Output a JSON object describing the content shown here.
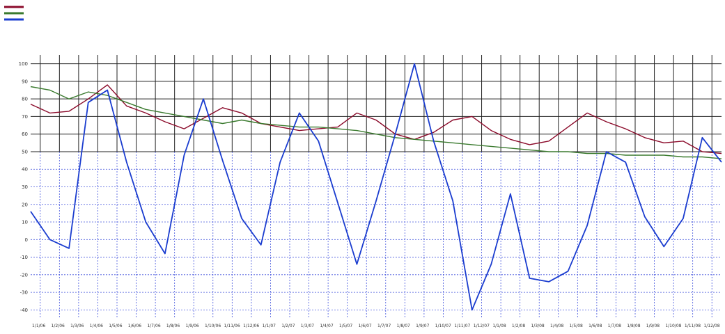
{
  "chart_data": {
    "type": "line",
    "title": "",
    "xlabel": "",
    "ylabel": "",
    "legend_position": "top-left",
    "grid": true,
    "ylim": [
      -45,
      105
    ],
    "y_ticks": [
      "100",
      "90",
      "80",
      "70",
      "60",
      "50",
      "40",
      "30",
      "20",
      "10",
      "0",
      "-10",
      "-20",
      "-30",
      "-40"
    ],
    "x_ticks": [
      "1/1/06",
      "1/2/06",
      "1/3/06",
      "1/4/06",
      "1/5/06",
      "1/6/06",
      "1/7/06",
      "1/8/06",
      "1/9/06",
      "1/10/06",
      "1/11/06",
      "1/12/06",
      "1/1/07",
      "1/2/07",
      "1/3/07",
      "1/4/07",
      "1/5/07",
      "1/6/07",
      "1/7/07",
      "1/8/07",
      "1/9/07",
      "1/10/07",
      "1/11/07",
      "1/12/07",
      "1/1/08",
      "1/2/08",
      "1/3/08",
      "1/4/08",
      "1/5/08",
      "1/6/08",
      "1/7/08",
      "1/8/08",
      "1/9/08",
      "1/10/08",
      "1/11/08",
      "1/12/08"
    ],
    "x_range": [
      0,
      36
    ],
    "series": [
      {
        "name": "",
        "color": "#8b0a2a",
        "points": [
          [
            0,
            77
          ],
          [
            1,
            72
          ],
          [
            2,
            73
          ],
          [
            3,
            80
          ],
          [
            4,
            88
          ],
          [
            5,
            76
          ],
          [
            6,
            72
          ],
          [
            7,
            67
          ],
          [
            8,
            63
          ],
          [
            9,
            69
          ],
          [
            10,
            75
          ],
          [
            11,
            72
          ],
          [
            12,
            66
          ],
          [
            13,
            64
          ],
          [
            14,
            62
          ],
          [
            15,
            63
          ],
          [
            16,
            64
          ],
          [
            17,
            72
          ],
          [
            18,
            68
          ],
          [
            19,
            60
          ],
          [
            20,
            57
          ],
          [
            21,
            61
          ],
          [
            22,
            68
          ],
          [
            23,
            70
          ],
          [
            24,
            62
          ],
          [
            25,
            57
          ],
          [
            26,
            54
          ],
          [
            27,
            56
          ],
          [
            28,
            64
          ],
          [
            29,
            72
          ],
          [
            30,
            67
          ],
          [
            31,
            63
          ],
          [
            32,
            58
          ],
          [
            33,
            55
          ],
          [
            34,
            56
          ],
          [
            35,
            50
          ],
          [
            36,
            49
          ]
        ]
      },
      {
        "name": "",
        "color": "#3a7a2e",
        "points": [
          [
            0,
            87
          ],
          [
            1,
            85
          ],
          [
            2,
            80
          ],
          [
            3,
            84
          ],
          [
            4,
            82
          ],
          [
            5,
            78
          ],
          [
            6,
            74
          ],
          [
            7,
            72
          ],
          [
            8,
            70
          ],
          [
            9,
            68
          ],
          [
            10,
            66
          ],
          [
            11,
            68
          ],
          [
            12,
            66
          ],
          [
            13,
            65
          ],
          [
            14,
            64
          ],
          [
            15,
            64
          ],
          [
            16,
            63
          ],
          [
            17,
            62
          ],
          [
            18,
            60
          ],
          [
            19,
            58
          ],
          [
            20,
            57
          ],
          [
            21,
            56
          ],
          [
            22,
            55
          ],
          [
            23,
            54
          ],
          [
            24,
            53
          ],
          [
            25,
            52
          ],
          [
            26,
            51
          ],
          [
            27,
            50
          ],
          [
            28,
            50
          ],
          [
            29,
            49
          ],
          [
            30,
            49
          ],
          [
            31,
            48
          ],
          [
            32,
            48
          ],
          [
            33,
            48
          ],
          [
            34,
            47
          ],
          [
            35,
            47
          ],
          [
            36,
            46
          ]
        ]
      },
      {
        "name": "",
        "color": "#1a3ccf",
        "points": [
          [
            0,
            16
          ],
          [
            1,
            0
          ],
          [
            2,
            -5
          ],
          [
            3,
            78
          ],
          [
            4,
            85
          ],
          [
            5,
            44
          ],
          [
            6,
            10
          ],
          [
            7,
            -8
          ],
          [
            8,
            48
          ],
          [
            9,
            80
          ],
          [
            10,
            45
          ],
          [
            11,
            12
          ],
          [
            12,
            -3
          ],
          [
            13,
            44
          ],
          [
            14,
            72
          ],
          [
            15,
            56
          ],
          [
            16,
            21
          ],
          [
            17,
            -14
          ],
          [
            18,
            22
          ],
          [
            19,
            60
          ],
          [
            20,
            100
          ],
          [
            21,
            56
          ],
          [
            22,
            22
          ],
          [
            23,
            -40
          ],
          [
            24,
            -14
          ],
          [
            25,
            26
          ],
          [
            26,
            -22
          ],
          [
            27,
            -24
          ],
          [
            28,
            -18
          ],
          [
            29,
            8
          ],
          [
            30,
            50
          ],
          [
            31,
            44
          ],
          [
            32,
            13
          ],
          [
            33,
            -4
          ],
          [
            34,
            12
          ],
          [
            35,
            58
          ],
          [
            36,
            44
          ]
        ]
      }
    ]
  }
}
